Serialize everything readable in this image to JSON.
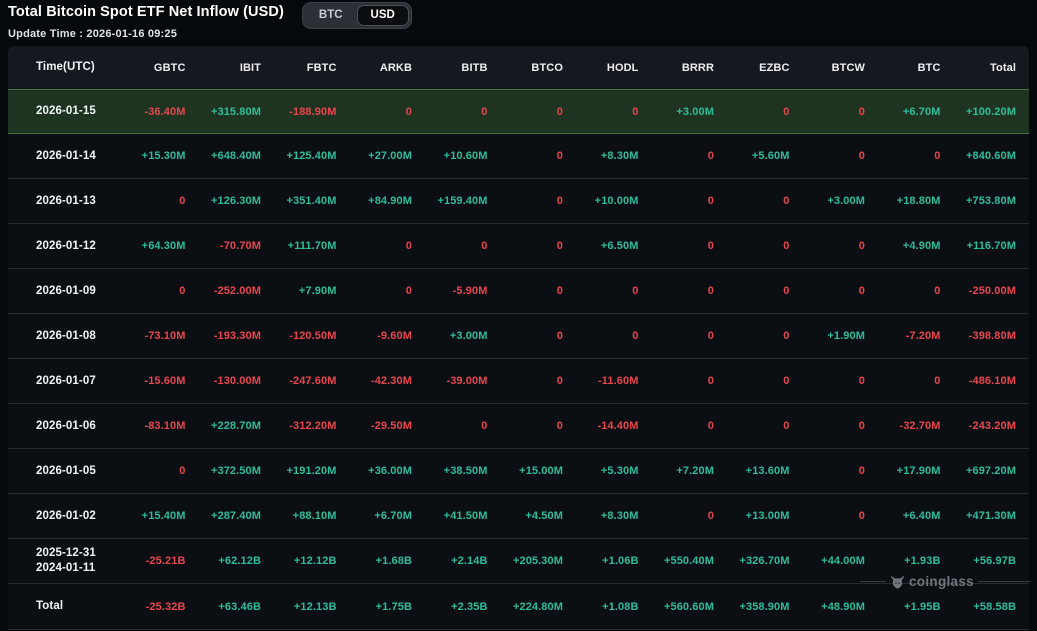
{
  "header": {
    "title": "Total Bitcoin Spot ETF Net Inflow (USD)",
    "toggle": {
      "options": [
        "BTC",
        "USD"
      ],
      "selected": "USD"
    },
    "update_time": "Update Time : 2026-01-16 09:25"
  },
  "colors": {
    "positive": "#2ebd9b",
    "negative": "#e8464f",
    "highlight_row_bg": "#1e3421",
    "highlight_row_border": "#45713f",
    "header_bg": "#15181e",
    "page_bg": "#06090c"
  },
  "watermark": {
    "label": "coinglass",
    "icon": "coinglass-bull-logo"
  },
  "table": {
    "columns": [
      "Time(UTC)",
      "GBTC",
      "IBIT",
      "FBTC",
      "ARKB",
      "BITB",
      "BTCO",
      "HODL",
      "BRRR",
      "EZBC",
      "BTCW",
      "BTC",
      "Total"
    ],
    "rows": [
      {
        "time": [
          "2026-01-15"
        ],
        "highlight": true,
        "values": [
          "-36.40M",
          "+315.80M",
          "-188.90M",
          "0",
          "0",
          "0",
          "0",
          "+3.00M",
          "0",
          "0",
          "+6.70M",
          "+100.20M"
        ]
      },
      {
        "time": [
          "2026-01-14"
        ],
        "values": [
          "+15.30M",
          "+648.40M",
          "+125.40M",
          "+27.00M",
          "+10.60M",
          "0",
          "+8.30M",
          "0",
          "+5.60M",
          "0",
          "0",
          "+840.60M"
        ]
      },
      {
        "time": [
          "2026-01-13"
        ],
        "values": [
          "0",
          "+126.30M",
          "+351.40M",
          "+84.90M",
          "+159.40M",
          "0",
          "+10.00M",
          "0",
          "0",
          "+3.00M",
          "+18.80M",
          "+753.80M"
        ]
      },
      {
        "time": [
          "2026-01-12"
        ],
        "values": [
          "+64.30M",
          "-70.70M",
          "+111.70M",
          "0",
          "0",
          "0",
          "+6.50M",
          "0",
          "0",
          "0",
          "+4.90M",
          "+116.70M"
        ]
      },
      {
        "time": [
          "2026-01-09"
        ],
        "values": [
          "0",
          "-252.00M",
          "+7.90M",
          "0",
          "-5.90M",
          "0",
          "0",
          "0",
          "0",
          "0",
          "0",
          "-250.00M"
        ]
      },
      {
        "time": [
          "2026-01-08"
        ],
        "values": [
          "-73.10M",
          "-193.30M",
          "-120.50M",
          "-9.60M",
          "+3.00M",
          "0",
          "0",
          "0",
          "0",
          "+1.90M",
          "-7.20M",
          "-398.80M"
        ]
      },
      {
        "time": [
          "2026-01-07"
        ],
        "values": [
          "-15.60M",
          "-130.00M",
          "-247.60M",
          "-42.30M",
          "-39.00M",
          "0",
          "-11.60M",
          "0",
          "0",
          "0",
          "0",
          "-486.10M"
        ]
      },
      {
        "time": [
          "2026-01-06"
        ],
        "values": [
          "-83.10M",
          "+228.70M",
          "-312.20M",
          "-29.50M",
          "0",
          "0",
          "-14.40M",
          "0",
          "0",
          "0",
          "-32.70M",
          "-243.20M"
        ]
      },
      {
        "time": [
          "2026-01-05"
        ],
        "values": [
          "0",
          "+372.50M",
          "+191.20M",
          "+36.00M",
          "+38.50M",
          "+15.00M",
          "+5.30M",
          "+7.20M",
          "+13.60M",
          "0",
          "+17.90M",
          "+697.20M"
        ]
      },
      {
        "time": [
          "2026-01-02"
        ],
        "values": [
          "+15.40M",
          "+287.40M",
          "+88.10M",
          "+6.70M",
          "+41.50M",
          "+4.50M",
          "+8.30M",
          "0",
          "+13.00M",
          "0",
          "+6.40M",
          "+471.30M"
        ]
      },
      {
        "time": [
          "2025-12-31",
          "2024-01-11"
        ],
        "values": [
          "-25.21B",
          "+62.12B",
          "+12.12B",
          "+1.68B",
          "+2.14B",
          "+205.30M",
          "+1.06B",
          "+550.40M",
          "+326.70M",
          "+44.00M",
          "+1.93B",
          "+56.97B"
        ]
      },
      {
        "time": [
          "Total"
        ],
        "total": true,
        "values": [
          "-25.32B",
          "+63.46B",
          "+12.13B",
          "+1.75B",
          "+2.35B",
          "+224.80M",
          "+1.08B",
          "+560.60M",
          "+358.90M",
          "+48.90M",
          "+1.95B",
          "+58.58B"
        ]
      }
    ]
  }
}
